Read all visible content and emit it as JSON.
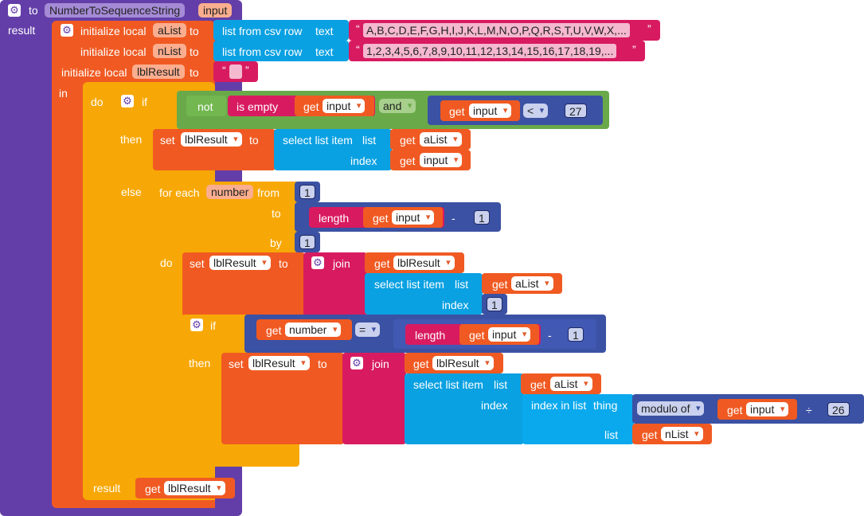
{
  "procedure": {
    "to_label": "to",
    "name": "NumberToSequenceString",
    "param": "input",
    "result_label": "result"
  },
  "init": {
    "initialize_local": "initialize local",
    "to": "to",
    "vars": [
      {
        "name": "aList",
        "source": "list from csv row",
        "text_label": "text",
        "value": "A,B,C,D,E,F,G,H,I,J,K,L,M,N,O,P,Q,R,S,T,U,V,W,X,..."
      },
      {
        "name": "nList",
        "source": "list from csv row",
        "text_label": "text",
        "value": "1,2,3,4,5,6,7,8,9,10,11,12,13,14,15,16,17,18,19,..."
      },
      {
        "name": "lblResult"
      }
    ],
    "in_label": "in"
  },
  "do_block": {
    "do_label": "do",
    "if_label": "if",
    "not_label": "not",
    "is_empty": "is empty",
    "get": "get",
    "input_var": "input",
    "and_label": "and",
    "lt_op": "<",
    "compare_value": "27",
    "then_label": "then",
    "set_label": "set",
    "lbl_result": "lblResult",
    "to_label": "to",
    "select_list_item": "select list item",
    "list_label": "list",
    "index_label": "index",
    "a_list_var": "aList",
    "else_label": "else",
    "for_each": "for each",
    "number_var": "number",
    "from_label": "from",
    "from_value": "1",
    "to_kw": "to",
    "length_label": "length",
    "minus_op": "-",
    "one_value": "1",
    "by_label": "by",
    "by_value": "1",
    "do_label2": "do",
    "join_label": "join",
    "eq_op": "=",
    "index_in_list": "index in list",
    "thing_label": "thing",
    "modulo_of": "modulo of",
    "div_op": "÷",
    "mod_value": "26",
    "n_list_var": "nList",
    "result_label": "result"
  },
  "colors": {
    "procedure": "#633ea8",
    "variable": "#f05a22",
    "control": "#f7a806",
    "lists": "#0aa1e2",
    "text": "#d81b60",
    "logic": "#6aa94a",
    "math": "#3b51a3"
  }
}
